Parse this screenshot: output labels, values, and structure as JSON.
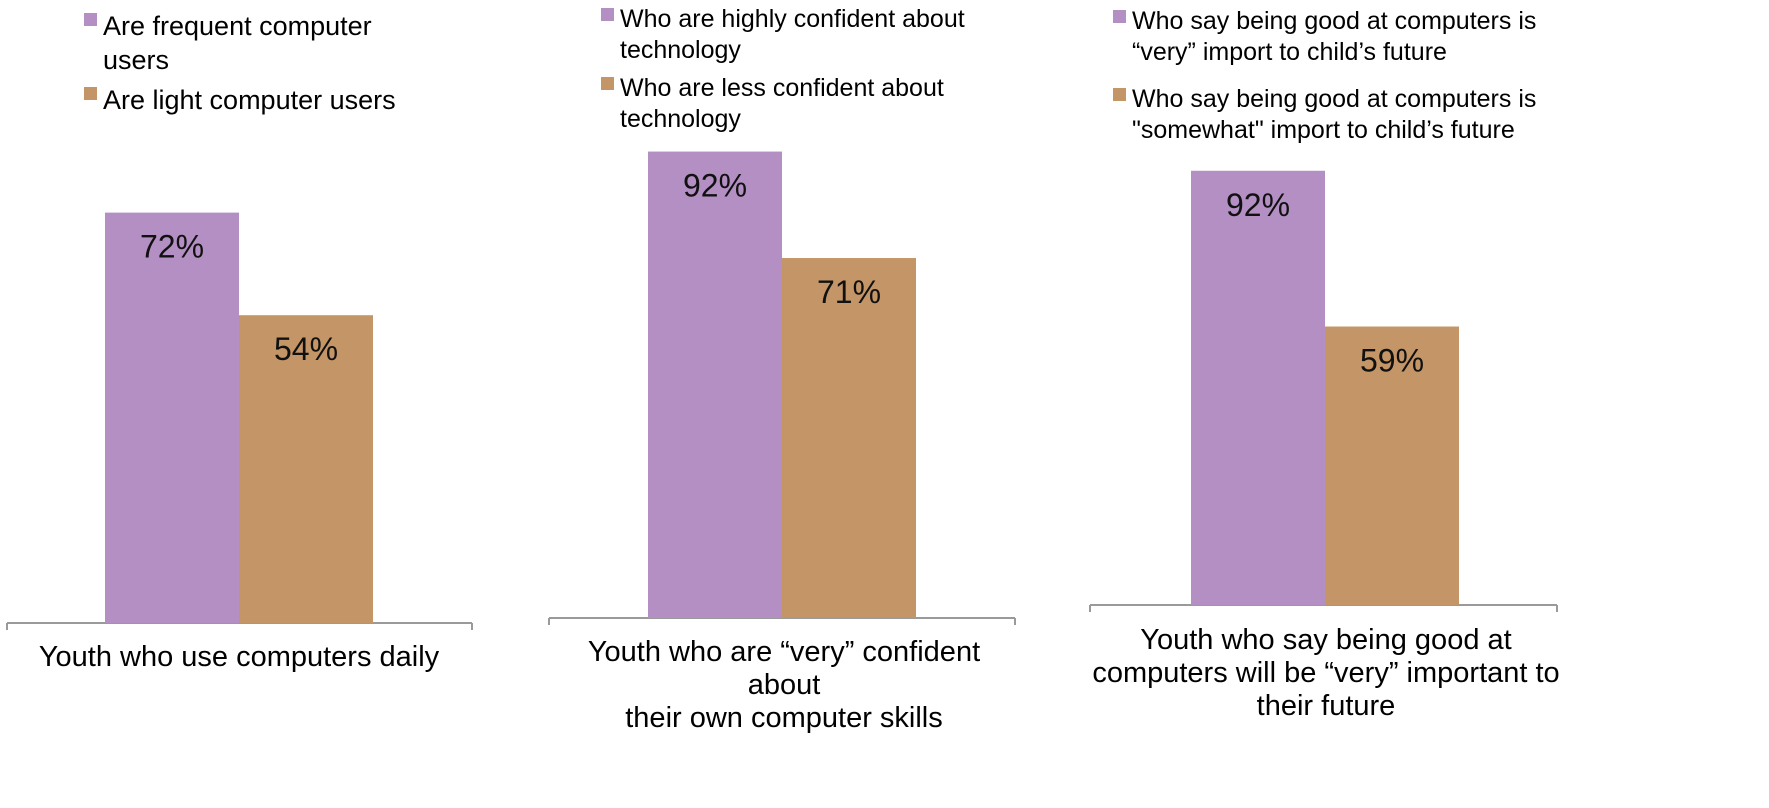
{
  "colors": {
    "primary_series": "#b48fc4",
    "secondary_series": "#c49566",
    "axis": "#9a9a9a"
  },
  "chart_data": [
    {
      "type": "bar",
      "categories": [
        "Youth who use computers daily"
      ],
      "category_label_lines": "Youth who use computers daily",
      "series": [
        {
          "name": "Are frequent computer users",
          "values": [
            72
          ],
          "data_labels": [
            "72%"
          ]
        },
        {
          "name": "Are light computer users",
          "values": [
            54
          ],
          "data_labels": [
            "54%"
          ]
        }
      ],
      "legend_lines": [
        "Are frequent computer\nusers",
        "Are light computer users"
      ],
      "ylim": [
        0,
        100
      ],
      "legend_position": "top"
    },
    {
      "type": "bar",
      "categories": [
        "Youth who are “very” confident about their own computer skills"
      ],
      "category_label_lines": "Youth who are “very” confident about\ntheir own computer skills",
      "series": [
        {
          "name": "Who are highly confident about technology",
          "values": [
            92
          ],
          "data_labels": [
            "92%"
          ]
        },
        {
          "name": "Who are less confident about technology",
          "values": [
            71
          ],
          "data_labels": [
            "71%"
          ]
        }
      ],
      "legend_lines": [
        "Who are highly confident about\ntechnology",
        "Who are less confident about\ntechnology"
      ],
      "ylim": [
        0,
        100
      ],
      "legend_position": "top"
    },
    {
      "type": "bar",
      "categories": [
        "Youth who say being good at computers will be “very” important to their future"
      ],
      "category_label_lines": "Youth who say being good at\ncomputers will be “very” important to\ntheir future",
      "series": [
        {
          "name": "Who say being good at computers is “very” import to child’s future",
          "values": [
            92
          ],
          "data_labels": [
            "92%"
          ]
        },
        {
          "name": "Who say being good at computers is \"somewhat\" import to child’s future",
          "values": [
            59
          ],
          "data_labels": [
            "59%"
          ]
        }
      ],
      "legend_lines": [
        "Who say being good at computers is\n“very” import to child’s future",
        "Who say being good at computers is\n\"somewhat\" import to child’s future"
      ],
      "ylim": [
        0,
        100
      ],
      "legend_position": "top"
    }
  ]
}
